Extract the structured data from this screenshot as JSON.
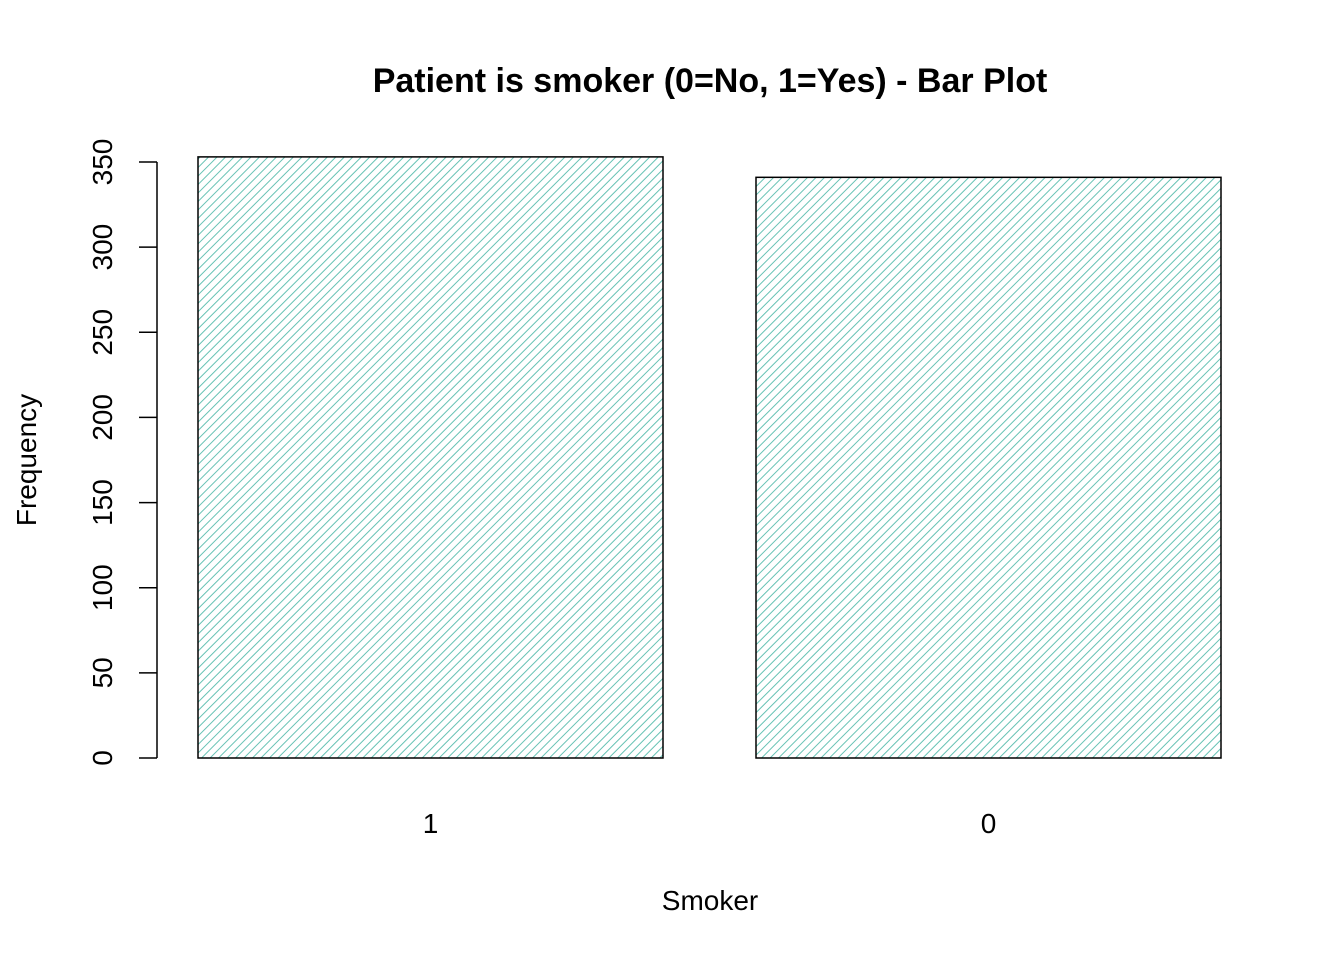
{
  "chart_data": {
    "type": "bar",
    "title": "Patient is smoker (0=No, 1=Yes) - Bar Plot",
    "xlabel": "Smoker",
    "ylabel": "Frequency",
    "categories": [
      "1",
      "0"
    ],
    "values": [
      353,
      341
    ],
    "ylim": [
      0,
      350
    ],
    "yticks": [
      0,
      50,
      100,
      150,
      200,
      250,
      300,
      350
    ],
    "bar_fill": "hatched",
    "hatch_color": "#66c2b4",
    "border_color": "#000000",
    "grid": false,
    "legend": "none"
  }
}
